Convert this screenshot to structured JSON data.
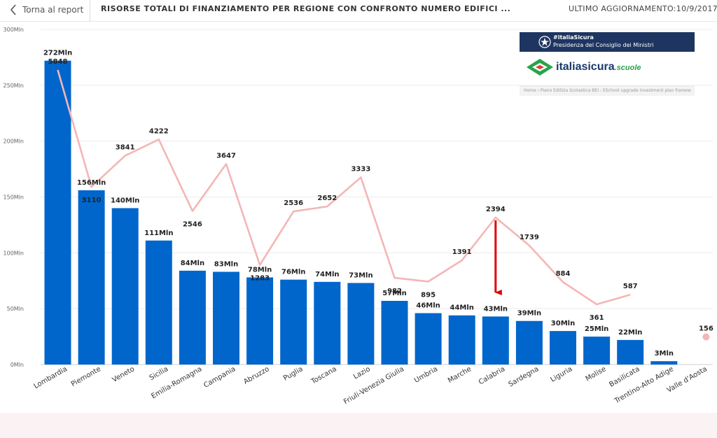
{
  "header": {
    "back_label": "Torna al report",
    "title": "RISORSE TOTALI DI FINANZIAMENTO PER REGIONE CON CONFRONTO NUMERO EDIFICI ...",
    "last_update": "ULTIMO AGGIORNAMENTO:10/9/2017, 18"
  },
  "logo": {
    "line1": "#italiaSicura",
    "line2": "Presidenza del Consiglio dei Ministri",
    "wordmark": "italiasicura",
    "wordmark_suffix": ".scuole",
    "breadcrumb": "Home  ›  Piano Edilizia Scolastica BEI - ESchool upgrade investment plan framew"
  },
  "chart_data": {
    "type": "bar",
    "title": "",
    "xlabel": "",
    "ylabel": "",
    "ylim": [
      0,
      300
    ],
    "y_ticks": [
      "0Mln",
      "50Mln",
      "100Mln",
      "150Mln",
      "200Mln",
      "250Mln",
      "300Mln"
    ],
    "grid": true,
    "categories": [
      "Lombardia",
      "Piemonte",
      "Veneto",
      "Sicilia",
      "Emilia-Romagna",
      "Campania",
      "Abruzzo",
      "Puglia",
      "Toscana",
      "Lazio",
      "Friuli-Venezia Giulia",
      "Umbria",
      "Marche",
      "Calabria",
      "Sardegna",
      "Liguria",
      "Molise",
      "Basilicata",
      "Trentino-Alto Adige",
      "Valle d'Aosta"
    ],
    "series": [
      {
        "type": "bar",
        "values": [
          272,
          156,
          140,
          111,
          84,
          83,
          78,
          76,
          74,
          73,
          57,
          46,
          44,
          43,
          39,
          30,
          25,
          22,
          3,
          null
        ],
        "labels": [
          "272Mln",
          "156Mln",
          "140Mln",
          "111Mln",
          "84Mln",
          "83Mln",
          "78Mln",
          "76Mln",
          "74Mln",
          "73Mln",
          "57Mln",
          "46Mln",
          "44Mln",
          "43Mln",
          "39Mln",
          "30Mln",
          "25Mln",
          "22Mln",
          "3Mln",
          ""
        ],
        "color": "#0066cc"
      },
      {
        "type": "line",
        "values": [
          5848,
          3110,
          3841,
          4222,
          2546,
          3647,
          1283,
          2536,
          2652,
          3333,
          982,
          895,
          1391,
          2394,
          1739,
          884,
          361,
          587,
          null,
          156
        ],
        "color": "#f4b6b6"
      }
    ],
    "annotation": {
      "type": "arrow",
      "category": "Calabria",
      "color": "#e00000"
    }
  }
}
